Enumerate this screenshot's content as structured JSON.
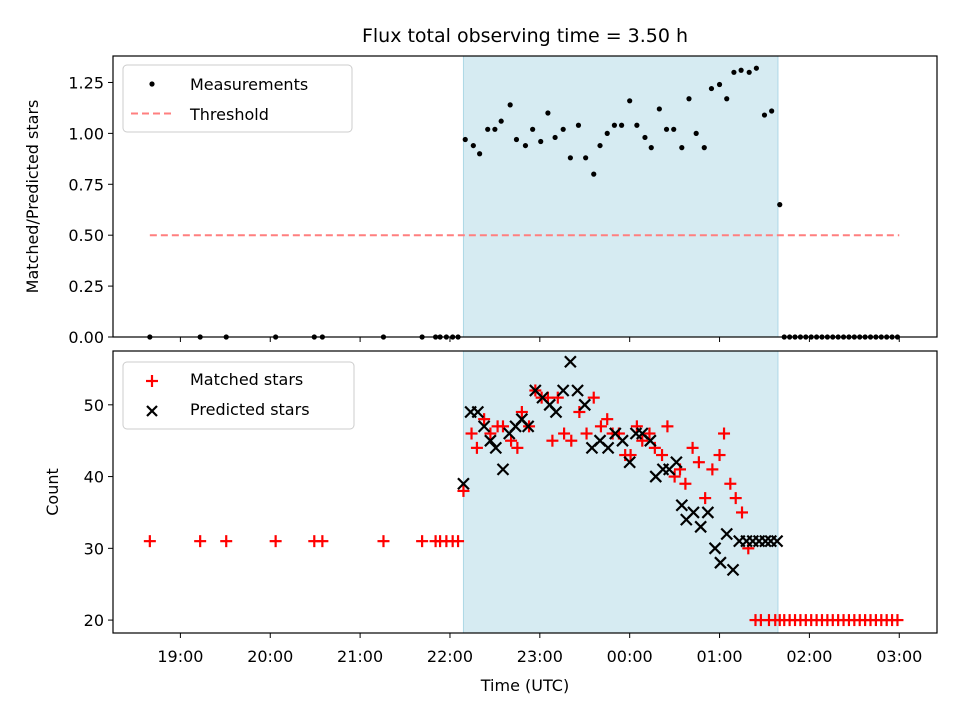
{
  "chart_data": [
    {
      "type": "scatter",
      "title": "Flux total observing time = 3.50 h",
      "xlabel": "",
      "ylabel": "Matched/Predicted stars",
      "ylim": [
        0,
        1.38
      ],
      "yticks": [
        "0.00",
        "0.25",
        "0.50",
        "0.75",
        "1.00",
        "1.25"
      ],
      "ytick_values": [
        0,
        0.25,
        0.5,
        0.75,
        1.0,
        1.25
      ],
      "xlim_hours": [
        -0.75,
        8.42
      ],
      "x_unit": "hours since 19:00 UTC",
      "shaded_region": {
        "start": 3.15,
        "end": 6.65,
        "color": "#add8e6"
      },
      "legend": {
        "placement": "top-left",
        "entries": [
          "Measurements",
          "Threshold"
        ]
      },
      "series": [
        {
          "name": "Measurements",
          "marker": "dot",
          "color": "#000000",
          "x": [
            -0.34,
            0.22,
            0.51,
            1.06,
            1.49,
            1.58,
            2.26,
            2.69,
            2.84,
            2.89,
            2.96,
            3.03,
            3.09,
            3.17,
            3.26,
            3.33,
            3.42,
            3.5,
            3.57,
            3.67,
            3.74,
            3.84,
            3.92,
            4.01,
            4.09,
            4.17,
            4.26,
            4.34,
            4.43,
            4.51,
            4.6,
            4.67,
            4.75,
            4.83,
            4.91,
            5.0,
            5.08,
            5.17,
            5.24,
            5.33,
            5.41,
            5.49,
            5.58,
            5.66,
            5.74,
            5.83,
            5.91,
            6.0,
            6.08,
            6.16,
            6.24,
            6.33,
            6.41,
            6.5,
            6.58,
            6.67,
            6.72,
            6.78,
            6.84,
            6.9,
            6.96,
            7.02,
            7.08,
            7.14,
            7.2,
            7.26,
            7.32,
            7.38,
            7.44,
            7.5,
            7.56,
            7.62,
            7.68,
            7.74,
            7.8,
            7.86,
            7.92,
            7.98
          ],
          "y": [
            0,
            0,
            0,
            0,
            0,
            0,
            0,
            0,
            0,
            0,
            0,
            0,
            0,
            0.97,
            0.94,
            0.9,
            1.02,
            1.02,
            1.06,
            1.14,
            0.97,
            0.94,
            1.02,
            0.96,
            1.1,
            0.98,
            1.02,
            0.88,
            1.04,
            0.88,
            0.8,
            0.94,
            1.0,
            1.04,
            1.04,
            1.16,
            1.04,
            0.98,
            0.93,
            1.12,
            1.02,
            1.02,
            0.93,
            1.17,
            1.0,
            0.93,
            1.22,
            1.24,
            1.17,
            1.3,
            1.31,
            1.3,
            1.32,
            1.09,
            1.11,
            0.65,
            0,
            0,
            0,
            0,
            0,
            0,
            0,
            0,
            0,
            0,
            0,
            0,
            0,
            0,
            0,
            0,
            0,
            0,
            0,
            0,
            0,
            0
          ]
        },
        {
          "name": "Threshold",
          "style": "dashed",
          "color": "#ff7f7f",
          "x": [
            -0.34,
            8.0
          ],
          "y": [
            0.5,
            0.5
          ]
        }
      ]
    },
    {
      "type": "scatter",
      "title": "",
      "xlabel": "Time (UTC)",
      "ylabel": "Count",
      "ylim": [
        18.2,
        57.5
      ],
      "yticks": [
        "20",
        "30",
        "40",
        "50"
      ],
      "ytick_values": [
        20,
        30,
        40,
        50
      ],
      "xlim_hours": [
        -0.75,
        8.42
      ],
      "xticks": [
        "19:00",
        "20:00",
        "21:00",
        "22:00",
        "23:00",
        "00:00",
        "01:00",
        "02:00",
        "03:00"
      ],
      "xtick_values": [
        0,
        1,
        2,
        3,
        4,
        5,
        6,
        7,
        8
      ],
      "shaded_region": {
        "start": 3.15,
        "end": 6.65,
        "color": "#add8e6"
      },
      "legend": {
        "placement": "top-left",
        "entries": [
          "Matched stars",
          "Predicted stars"
        ]
      },
      "series": [
        {
          "name": "Matched stars",
          "marker": "plus",
          "color": "#ff0000",
          "x": [
            -0.34,
            0.22,
            0.51,
            1.06,
            1.49,
            1.58,
            2.26,
            2.69,
            2.84,
            2.89,
            2.96,
            3.03,
            3.09,
            3.15,
            3.24,
            3.3,
            3.38,
            3.45,
            3.53,
            3.59,
            3.68,
            3.75,
            3.8,
            3.88,
            3.95,
            4.02,
            4.09,
            4.14,
            4.2,
            4.27,
            4.35,
            4.44,
            4.52,
            4.6,
            4.68,
            4.75,
            4.81,
            4.88,
            4.95,
            5.01,
            5.08,
            5.14,
            5.22,
            5.28,
            5.36,
            5.42,
            5.5,
            5.56,
            5.62,
            5.7,
            5.77,
            5.84,
            5.92,
            6.0,
            6.05,
            6.12,
            6.18,
            6.25,
            6.32,
            6.4,
            6.46,
            6.55,
            6.62,
            6.67,
            6.72,
            6.78,
            6.84,
            6.9,
            6.96,
            7.02,
            7.08,
            7.14,
            7.2,
            7.26,
            7.32,
            7.38,
            7.44,
            7.5,
            7.56,
            7.62,
            7.68,
            7.74,
            7.8,
            7.86,
            7.92,
            7.98
          ],
          "y": [
            31,
            31,
            31,
            31,
            31,
            31,
            31,
            31,
            31,
            31,
            31,
            31,
            31,
            38,
            46,
            44,
            48,
            46,
            47,
            47,
            45,
            44,
            49,
            47,
            52,
            51,
            51,
            45,
            51,
            46,
            45,
            49,
            46,
            51,
            47,
            48,
            46,
            46,
            43,
            43,
            47,
            45,
            46,
            44,
            43,
            47,
            40,
            41,
            39,
            44,
            42,
            37,
            41,
            43,
            46,
            39,
            37,
            35,
            30,
            20,
            20,
            20,
            20,
            20,
            20,
            20,
            20,
            20,
            20,
            20,
            20,
            20,
            20,
            20,
            20,
            20,
            20,
            20,
            20,
            20,
            20,
            20,
            20,
            20,
            20,
            20
          ]
        },
        {
          "name": "Predicted stars",
          "marker": "x",
          "color": "#000000",
          "x": [
            3.15,
            3.23,
            3.31,
            3.38,
            3.45,
            3.51,
            3.59,
            3.66,
            3.73,
            3.8,
            3.87,
            3.95,
            4.03,
            4.11,
            4.18,
            4.26,
            4.34,
            4.42,
            4.5,
            4.58,
            4.67,
            4.76,
            4.84,
            4.92,
            5.0,
            5.07,
            5.14,
            5.23,
            5.29,
            5.37,
            5.44,
            5.52,
            5.58,
            5.63,
            5.71,
            5.79,
            5.87,
            5.95,
            6.01,
            6.08,
            6.15,
            6.22,
            6.3,
            6.37,
            6.44,
            6.51,
            6.57,
            6.64
          ],
          "y": [
            39,
            49,
            49,
            47,
            45,
            44,
            41,
            46,
            47,
            48,
            47,
            52,
            51,
            50,
            49,
            52,
            56,
            52,
            50,
            44,
            45,
            44,
            46,
            45,
            42,
            46,
            46,
            45,
            40,
            41,
            41,
            42,
            36,
            34,
            35,
            33,
            35,
            30,
            28,
            32,
            27,
            31,
            31,
            31,
            31,
            31,
            31,
            31
          ]
        }
      ]
    }
  ]
}
